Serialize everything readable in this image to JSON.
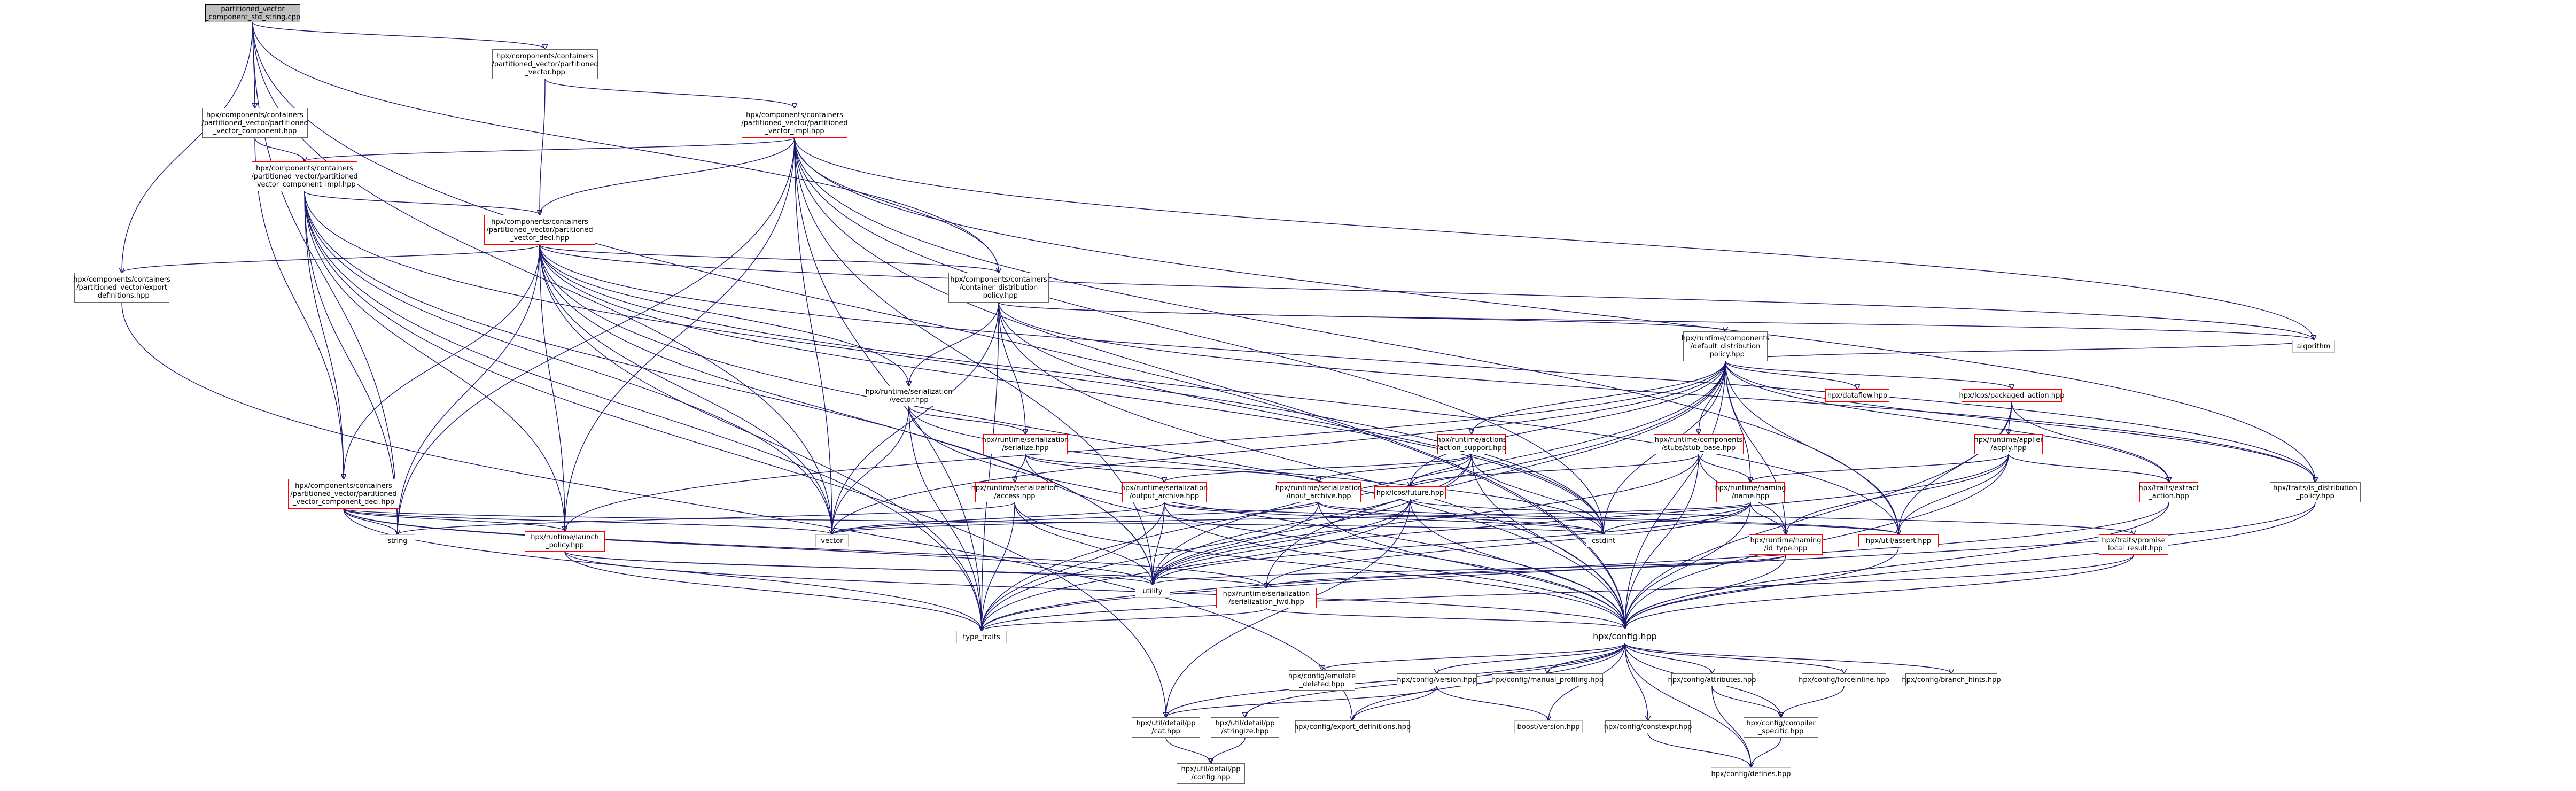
{
  "colors": {
    "edge": "#191970",
    "root_fill": "#bfbfbf",
    "red_border": "#ff0000",
    "plain_border": "#bfbfbf"
  },
  "nodes": {
    "root": "partitioned_vector\n_component_std_string.cpp",
    "pv_hpp": "hpx/components/containers\n/partitioned_vector/partitioned\n_vector.hpp",
    "pv_component_hpp": "hpx/components/containers\n/partitioned_vector/partitioned\n_vector_component.hpp",
    "pv_impl": "hpx/components/containers\n/partitioned_vector/partitioned\n_vector_impl.hpp",
    "pv_component_impl": "hpx/components/containers\n/partitioned_vector/partitioned\n_vector_component_impl.hpp",
    "pv_decl": "hpx/components/containers\n/partitioned_vector/partitioned\n_vector_decl.hpp",
    "export_defs": "hpx/components/containers\n/partitioned_vector/export\n_definitions.hpp",
    "container_dist": "hpx/components/containers\n/container_distribution\n_policy.hpp",
    "default_dist": "hpx/runtime/components\n/default_distribution\n_policy.hpp",
    "ser_vector": "hpx/runtime/serialization\n/vector.hpp",
    "ser_serialize": "hpx/runtime/serialization\n/serialize.hpp",
    "dataflow": "hpx/dataflow.hpp",
    "packaged_action": "hpx/lcos/packaged_action.hpp",
    "algorithm": "algorithm",
    "action_support": "hpx/runtime/actions\n/action_support.hpp",
    "stub_base": "hpx/runtime/components\n/stubs/stub_base.hpp",
    "applier": "hpx/runtime/applier\n/apply.hpp",
    "pv_component_decl": "hpx/components/containers\n/partitioned_vector/partitioned\n_vector_component_decl.hpp",
    "ser_access": "hpx/runtime/serialization\n/access.hpp",
    "output_archive": "hpx/runtime/serialization\n/output_archive.hpp",
    "input_archive": "hpx/runtime/serialization\n/input_archive.hpp",
    "future": "hpx/lcos/future.hpp",
    "naming_name": "hpx/runtime/naming\n/name.hpp",
    "extract_action": "hpx/traits/extract\n_action.hpp",
    "is_distribution": "hpx/traits/is_distribution\n_policy.hpp",
    "string": "string",
    "launch_policy": "hpx/runtime/launch\n_policy.hpp",
    "vector": "vector",
    "cstdint": "cstdint",
    "assert": "hpx/util/assert.hpp",
    "id_type": "hpx/runtime/naming\n/id_type.hpp",
    "promise_local": "hpx/traits/promise\n_local_result.hpp",
    "utility": "utility",
    "ser_fwd": "hpx/runtime/serialization\n/serialization_fwd.hpp",
    "type_traits": "type_traits",
    "config": "hpx/config.hpp",
    "emulate_deleted": "hpx/config/emulate\n_deleted.hpp",
    "config_version": "hpx/config/version.hpp",
    "manual_profiling": "hpx/config/manual_profiling.hpp",
    "attributes": "hpx/config/attributes.hpp",
    "forceinline": "hpx/config/forceinline.hpp",
    "branch_hints": "hpx/config/branch_hints.hpp",
    "cat": "hpx/util/detail/pp\n/cat.hpp",
    "stringize": "hpx/util/detail/pp\n/stringize.hpp",
    "export_definitions": "hpx/config/export_definitions.hpp",
    "boost_version": "boost/version.hpp",
    "constexpr": "hpx/config/constexpr.hpp",
    "compiler_specific": "hpx/config/compiler\n_specific.hpp",
    "pp_config": "hpx/util/detail/pp\n/config.hpp",
    "defines": "hpx/config/defines.hpp"
  }
}
